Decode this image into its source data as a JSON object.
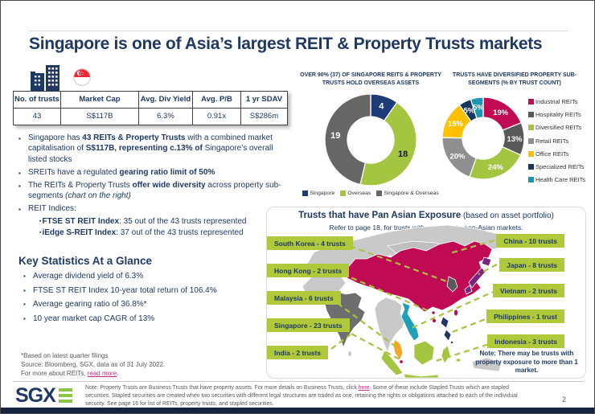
{
  "slide": {
    "title": "Singapore is one of Asia’s largest REIT & Property Trusts markets",
    "page_number": "2"
  },
  "stats_table": {
    "headers": [
      "No. of trusts",
      "Market Cap",
      "Avg. Div Yield",
      "Avg. P/B",
      "1 yr SDAV"
    ],
    "values": [
      "43",
      "S$117B",
      "6.3%",
      "0.91x",
      "S$286m"
    ]
  },
  "bullets": [
    {
      "segs": [
        {
          "t": "Singapore has "
        },
        {
          "t": "43 REITs & Property Trusts",
          "b": 1
        },
        {
          "t": " with a combined market capitalisation of "
        },
        {
          "t": "S$117B, representing c.13% of",
          "b": 1
        },
        {
          "t": " Singapore’s overall listed stocks"
        }
      ]
    },
    {
      "segs": [
        {
          "t": "SREITs have a regulated "
        },
        {
          "t": "gearing ratio limit of 50%",
          "b": 1
        }
      ]
    },
    {
      "segs": [
        {
          "t": "The REITs & Property Trusts "
        },
        {
          "t": "offer wide diversity",
          "b": 1
        },
        {
          "t": " across property sub-segments "
        },
        {
          "t": "(chart on the right)",
          "i": 1
        }
      ]
    },
    {
      "segs": [
        {
          "t": "REIT Indices:"
        }
      ]
    }
  ],
  "sub_bullets": [
    {
      "segs": [
        {
          "t": "FTSE ST REIT Index",
          "b": 1
        },
        {
          "t": ": 35 out of the 43 trusts represented"
        }
      ]
    },
    {
      "segs": [
        {
          "t": "iEdge S-REIT Index",
          "b": 1
        },
        {
          "t": ": 37 out of the 43 trusts represented"
        }
      ]
    }
  ],
  "key_stats": {
    "heading": "Key Statistics At a Glance",
    "items": [
      "Average dividend yield of 6.3%",
      "FTSE ST REIT Index 10-year total return of 106.4%",
      "Average gearing ratio of 36.8%*",
      "10 year market cap CAGR of 13%"
    ]
  },
  "footnote": {
    "lines": [
      "*Based on latest quarter filings",
      "Source: Bloomberg, SGX, data as of 31 July 2022."
    ],
    "last_line": [
      {
        "t": "For more about REITs, "
      },
      {
        "t": "read more",
        "link": 1
      },
      {
        "t": "."
      }
    ]
  },
  "chart_data": [
    {
      "type": "pie",
      "title": "OVER 90% (37) OF SINGAPORE REITS & PROPERTY TRUSTS HOLD OVERSEAS ASSETS",
      "labels": [
        "Singapore",
        "Overseas",
        "Singapore & Overseas"
      ],
      "values": [
        4,
        18,
        19
      ],
      "unit": "",
      "colors": [
        "#1e3b78",
        "#a4c53f",
        "#666666"
      ],
      "label_colors": [
        "#ffffff",
        "#1a1a1a",
        "#ffffff"
      ],
      "legend_position": "bottom"
    },
    {
      "type": "pie",
      "title": "TRUSTS HAVE DIVERSIFIED PROPERTY SUB-SEGMENTS (% BY TRUST COUNT)",
      "labels": [
        "Industrial REITs",
        "Hospitality REITs",
        "Diversified REITs",
        "Retail REITs",
        "Office REITs",
        "Specialized REITs",
        "Health Care REITs"
      ],
      "values": [
        19,
        13,
        24,
        20,
        15,
        5,
        5
      ],
      "unit": "%",
      "colors": [
        "#c00a53",
        "#595959",
        "#a4c53f",
        "#8f8f8f",
        "#ffc000",
        "#17375e",
        "#1898b0"
      ],
      "label_colors": [
        "#ffffff",
        "#ffffff",
        "#ffffff",
        "#ffffff",
        "#ffffff",
        "#ffffff",
        "#ffffff"
      ],
      "legend_position": "right"
    },
    {
      "type": "map",
      "title": "Trusts that have Pan Asian Exposure",
      "regions": [
        {
          "name": "South Korea",
          "trusts": 4,
          "side": "left"
        },
        {
          "name": "Hong Kong",
          "trusts": 2,
          "side": "left"
        },
        {
          "name": "Malaysia",
          "trusts": 6,
          "side": "left"
        },
        {
          "name": "Singapore",
          "trusts": 23,
          "side": "left"
        },
        {
          "name": "India",
          "trusts": 2,
          "side": "left"
        },
        {
          "name": "China",
          "trusts": 10,
          "side": "right"
        },
        {
          "name": "Japan",
          "trusts": 8,
          "side": "right"
        },
        {
          "name": "Vietnam",
          "trusts": 2,
          "side": "right"
        },
        {
          "name": "Philippines",
          "trusts": 1,
          "side": "right"
        },
        {
          "name": "Indonesia",
          "trusts": 3,
          "side": "right"
        }
      ]
    }
  ],
  "map": {
    "title_bold": "Trusts that have Pan Asian Exposure",
    "title_rest": " (based on asset portfolio)",
    "subtitle": "Refer to page 18, for trusts with exposure to non-Asian markets.",
    "note": "Note: There may be trusts with property exposure to more than 1 market."
  },
  "footer": {
    "note_segs": [
      {
        "t": "Note: Property Trusts are Business Trusts that have property assets. For more details on Business Trusts, click "
      },
      {
        "t": "here",
        "link": 1
      },
      {
        "t": ". Some of these include Stapled Trusts which are stapled securities. Stapled securities are created when two securities with different legal structures are traded as one, retaining the rights or obligations attached to each of the individual security. See page 16 for list of REITs, property trusts, and stapled securities."
      }
    ],
    "logo_text": "SGX"
  }
}
